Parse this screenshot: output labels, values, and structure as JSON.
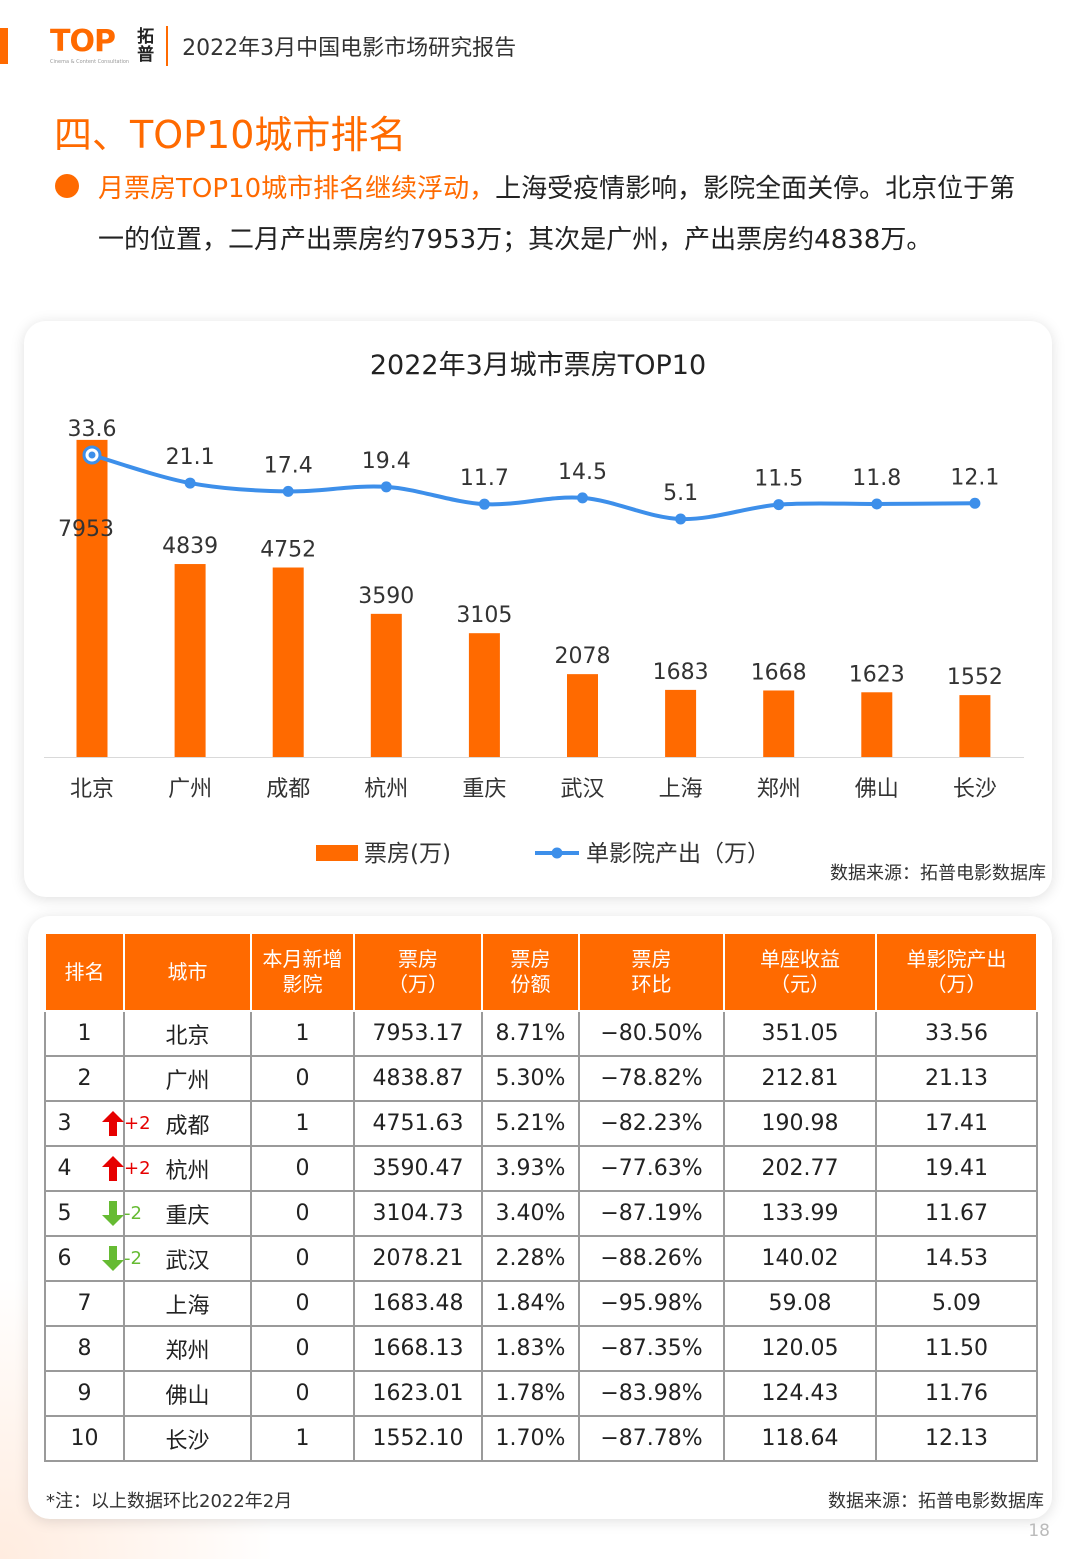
{
  "header": {
    "logo_main": "TOP",
    "logo_sub": "Cinema & Content Consultation",
    "logo_cn_1": "拓",
    "logo_cn_2": "普",
    "report_title": "2022年3月中国电影市场研究报告"
  },
  "section": {
    "title": "四、TOP10城市排名",
    "highlight": "月票房TOP10城市排名继续浮动，",
    "body": "上海受疫情影响，影院全面关停。北京位于第一的位置，二月产出票房约7953万；其次是广州，产出票房约4838万。"
  },
  "chart_data": {
    "type": "bar",
    "title": "2022年3月城市票房TOP10",
    "categories": [
      "北京",
      "广州",
      "成都",
      "杭州",
      "重庆",
      "武汉",
      "上海",
      "郑州",
      "佛山",
      "长沙"
    ],
    "series": [
      {
        "name": "票房(万)",
        "type": "bar",
        "values": [
          7953,
          4839,
          4752,
          3590,
          3105,
          2078,
          1683,
          1668,
          1623,
          1552
        ],
        "color": "#FF6A00"
      },
      {
        "name": "单影院产出（万）",
        "type": "line",
        "values": [
          33.6,
          21.1,
          17.4,
          19.4,
          11.7,
          14.5,
          5.1,
          11.5,
          11.8,
          12.1
        ],
        "color": "#3D8FEA"
      }
    ],
    "bar_value_labels": [
      "7953",
      "4839",
      "4752",
      "3590",
      "3105",
      "2078",
      "1683",
      "1668",
      "1623",
      "1552"
    ],
    "line_value_labels": [
      "33.6",
      "21.1",
      "17.4",
      "19.4",
      "11.7",
      "14.5",
      "5.1",
      "11.5",
      "11.8",
      "12.1"
    ],
    "bar_ylim": [
      0,
      8000
    ],
    "line_ylim": [
      0,
      33.6
    ],
    "legend_position": "bottom",
    "grid": false,
    "source": "数据来源：拓普电影数据库"
  },
  "table": {
    "headers": [
      [
        "排名"
      ],
      [
        "城市"
      ],
      [
        "本月新增",
        "影院"
      ],
      [
        "票房",
        "（万）"
      ],
      [
        "票房",
        "份额"
      ],
      [
        "票房",
        "环比"
      ],
      [
        "单座收益",
        "（元）"
      ],
      [
        "单影院产出",
        "（万）"
      ]
    ],
    "rows": [
      {
        "rank": "1",
        "change": "",
        "dir": "",
        "city": "北京",
        "new": "1",
        "box": "7953.17",
        "share": "8.71%",
        "mom": "−80.50%",
        "seat": "351.05",
        "per": "33.56"
      },
      {
        "rank": "2",
        "change": "",
        "dir": "",
        "city": "广州",
        "new": "0",
        "box": "4838.87",
        "share": "5.30%",
        "mom": "−78.82%",
        "seat": "212.81",
        "per": "21.13"
      },
      {
        "rank": "3",
        "change": "+2",
        "dir": "up",
        "city": "成都",
        "new": "1",
        "box": "4751.63",
        "share": "5.21%",
        "mom": "−82.23%",
        "seat": "190.98",
        "per": "17.41"
      },
      {
        "rank": "4",
        "change": "+2",
        "dir": "up",
        "city": "杭州",
        "new": "0",
        "box": "3590.47",
        "share": "3.93%",
        "mom": "−77.63%",
        "seat": "202.77",
        "per": "19.41"
      },
      {
        "rank": "5",
        "change": "-2",
        "dir": "down",
        "city": "重庆",
        "new": "0",
        "box": "3104.73",
        "share": "3.40%",
        "mom": "−87.19%",
        "seat": "133.99",
        "per": "11.67"
      },
      {
        "rank": "6",
        "change": "-2",
        "dir": "down",
        "city": "武汉",
        "new": "0",
        "box": "2078.21",
        "share": "2.28%",
        "mom": "−88.26%",
        "seat": "140.02",
        "per": "14.53"
      },
      {
        "rank": "7",
        "change": "",
        "dir": "",
        "city": "上海",
        "new": "0",
        "box": "1683.48",
        "share": "1.84%",
        "mom": "−95.98%",
        "seat": "59.08",
        "per": "5.09"
      },
      {
        "rank": "8",
        "change": "",
        "dir": "",
        "city": "郑州",
        "new": "0",
        "box": "1668.13",
        "share": "1.83%",
        "mom": "−87.35%",
        "seat": "120.05",
        "per": "11.50"
      },
      {
        "rank": "9",
        "change": "",
        "dir": "",
        "city": "佛山",
        "new": "0",
        "box": "1623.01",
        "share": "1.78%",
        "mom": "−83.98%",
        "seat": "124.43",
        "per": "11.76"
      },
      {
        "rank": "10",
        "change": "",
        "dir": "",
        "city": "长沙",
        "new": "1",
        "box": "1552.10",
        "share": "1.70%",
        "mom": "−87.78%",
        "seat": "118.64",
        "per": "12.13"
      }
    ],
    "note": "*注：以上数据环比2022年2月",
    "source": "数据来源：拓普电影数据库"
  },
  "page_number": "18"
}
